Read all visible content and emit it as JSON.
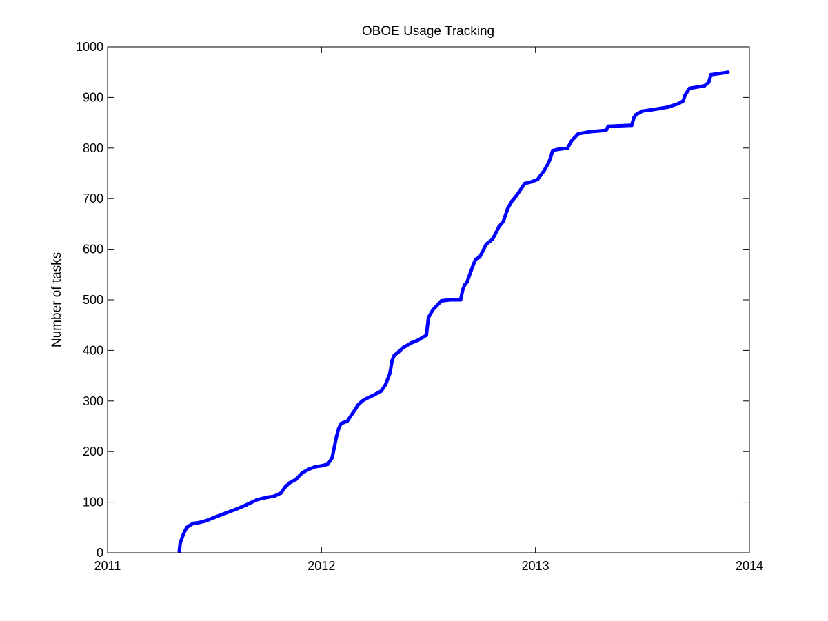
{
  "chart_data": {
    "type": "line",
    "title": "OBOE Usage Tracking",
    "xlabel": "",
    "ylabel": "Number of tasks",
    "xlim": [
      2011,
      2014
    ],
    "ylim": [
      0,
      1000
    ],
    "x_ticks": [
      2011,
      2012,
      2013,
      2014
    ],
    "x_tick_labels": [
      "2011",
      "2012",
      "2013",
      "2014"
    ],
    "y_ticks": [
      0,
      100,
      200,
      300,
      400,
      500,
      600,
      700,
      800,
      900,
      1000
    ],
    "y_tick_labels": [
      "0",
      "100",
      "200",
      "300",
      "400",
      "500",
      "600",
      "700",
      "800",
      "900",
      "1000"
    ],
    "grid": false,
    "legend": "none",
    "series": [
      {
        "color": "#0000ff",
        "x": [
          2011.335,
          2011.337,
          2011.34,
          2011.345,
          2011.35,
          2011.36,
          2011.37,
          2011.38,
          2011.4,
          2011.42,
          2011.45,
          2011.47,
          2011.5,
          2011.55,
          2011.6,
          2011.65,
          2011.7,
          2011.75,
          2011.78,
          2011.81,
          2011.83,
          2011.85,
          2011.88,
          2011.91,
          2011.94,
          2011.97,
          2012.0,
          2012.03,
          2012.05,
          2012.07,
          2012.08,
          2012.09,
          2012.1,
          2012.12,
          2012.16,
          2012.17,
          2012.19,
          2012.21,
          2012.25,
          2012.28,
          2012.3,
          2012.32,
          2012.33,
          2012.34,
          2012.36,
          2012.38,
          2012.42,
          2012.45,
          2012.49,
          2012.5,
          2012.52,
          2012.56,
          2012.6,
          2012.65,
          2012.66,
          2012.67,
          2012.68,
          2012.71,
          2012.72,
          2012.73,
          2012.74,
          2012.77,
          2012.8,
          2012.83,
          2012.85,
          2012.87,
          2012.89,
          2012.91,
          2012.95,
          2012.98,
          2013.01,
          2013.04,
          2013.06,
          2013.07,
          2013.08,
          2013.1,
          2013.15,
          2013.17,
          2013.2,
          2013.25,
          2013.33,
          2013.34,
          2013.45,
          2013.46,
          2013.47,
          2013.5,
          2013.55,
          2013.58,
          2013.62,
          2013.67,
          2013.69,
          2013.7,
          2013.72,
          2013.79,
          2013.81,
          2013.82,
          2013.87,
          2013.9
        ],
        "y": [
          3,
          10,
          20,
          25,
          32,
          42,
          50,
          53,
          58,
          59,
          62,
          65,
          70,
          78,
          86,
          95,
          105,
          110,
          112,
          118,
          130,
          138,
          145,
          158,
          165,
          170,
          172,
          175,
          188,
          230,
          245,
          255,
          257,
          260,
          285,
          292,
          300,
          305,
          313,
          320,
          333,
          355,
          380,
          390,
          397,
          405,
          415,
          420,
          430,
          465,
          480,
          498,
          500,
          500,
          520,
          530,
          535,
          570,
          580,
          582,
          585,
          610,
          620,
          645,
          655,
          680,
          695,
          705,
          730,
          733,
          738,
          755,
          770,
          780,
          795,
          797,
          800,
          815,
          828,
          832,
          835,
          843,
          845,
          860,
          866,
          873,
          876,
          878,
          881,
          888,
          893,
          905,
          918,
          923,
          930,
          945,
          948,
          950
        ]
      }
    ]
  }
}
